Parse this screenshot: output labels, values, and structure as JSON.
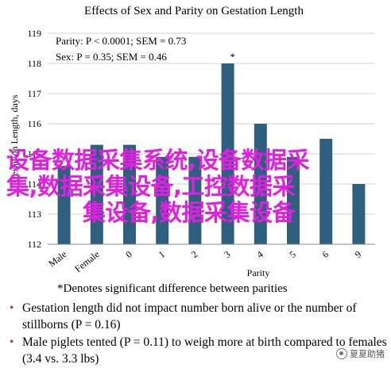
{
  "chart_data": {
    "type": "bar",
    "title": "Effects of Sex and Parity on Gestation Length",
    "ylabel": "Gestation Length, days",
    "xlabel": "Parity",
    "ylim": [
      112,
      119
    ],
    "yticks": [
      112,
      113,
      114,
      115,
      116,
      117,
      118,
      119
    ],
    "categories": [
      "Male",
      "Female",
      "0",
      "1",
      "2",
      "3",
      "4",
      "5",
      "6",
      "9"
    ],
    "values": [
      114.6,
      115.3,
      115.3,
      114.9,
      114.9,
      118.0,
      116.0,
      114.9,
      115.5,
      114.0
    ],
    "bar_color": "#2e5f7e",
    "grid": true,
    "annotations": {
      "parity_stats": "Parity: P < 0.0001; SEM = 0.73",
      "sex_stats": "Sex: P = 0.35; SEM = 0.46",
      "star": "*"
    }
  },
  "overlay_text": {
    "line1": "设备数据采集系统,设备数据采",
    "line2": "集,数据采集设备,工控数据采",
    "line3": "集设备,数据采集设备"
  },
  "footnote": "*Denotes significant difference between parities",
  "bullets": [
    "Gestation length did not impact number born alive or the number of stillborns (P = 0.16)",
    "Male piglets tented (P = 0.11) to weigh more at birth compared to females (3.4 vs. 3.3 lbs)"
  ],
  "watermark": "夏夏助猪"
}
